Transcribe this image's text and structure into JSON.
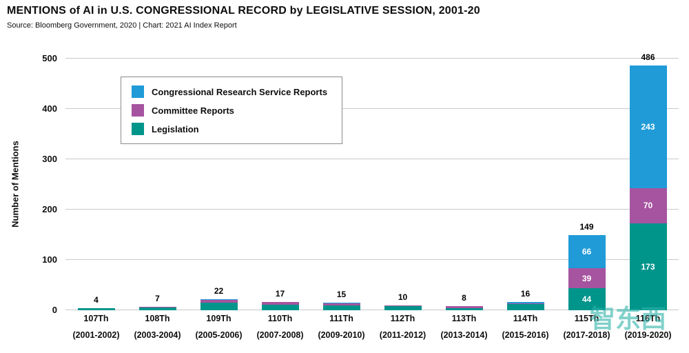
{
  "watermark": {
    "text": "智东西"
  },
  "chart_data": {
    "type": "bar",
    "stacked": true,
    "title": "MENTIONS of AI in U.S. CONGRESSIONAL RECORD by LEGISLATIVE SESSION, 2001-20",
    "source": "Source: Bloomberg Government, 2020 | Chart: 2021 AI Index Report",
    "ylabel": "Number of Mentions",
    "xlabel": "",
    "ylim": [
      0,
      500
    ],
    "yticks": [
      0,
      100,
      200,
      300,
      400,
      500
    ],
    "grid": true,
    "legend_position": "upper-left",
    "categories": [
      {
        "session": "107Th",
        "years": "(2001-2002)"
      },
      {
        "session": "108Th",
        "years": "(2003-2004)"
      },
      {
        "session": "109Th",
        "years": "(2005-2006)"
      },
      {
        "session": "110Th",
        "years": "(2007-2008)"
      },
      {
        "session": "111Th",
        "years": "(2009-2010)"
      },
      {
        "session": "112Th",
        "years": "(2011-2012)"
      },
      {
        "session": "113Th",
        "years": "(2013-2014)"
      },
      {
        "session": "114Th",
        "years": "(2015-2016)"
      },
      {
        "session": "115Th",
        "years": "(2017-2018)"
      },
      {
        "session": "116Th",
        "years": "(2019-2020)"
      }
    ],
    "series": [
      {
        "name": "Legislation",
        "color": "#00958b",
        "values": [
          4,
          6,
          15,
          11,
          9,
          8,
          4,
          12,
          44,
          173
        ]
      },
      {
        "name": "Committee Reports",
        "color": "#a6549f",
        "values": [
          0,
          1,
          6,
          5,
          5,
          2,
          4,
          2,
          39,
          70
        ]
      },
      {
        "name": "Congressional Research Service Reports",
        "color": "#209bd8",
        "values": [
          0,
          0,
          1,
          1,
          1,
          0,
          0,
          2,
          66,
          243
        ]
      }
    ],
    "totals": [
      4,
      7,
      22,
      17,
      15,
      10,
      8,
      16,
      149,
      486
    ],
    "labeled_segments": {
      "115Th": [
        44,
        39,
        66
      ],
      "116Th": [
        173,
        70,
        243
      ]
    },
    "segment_label_min": 39,
    "legend": [
      "Congressional Research Service Reports",
      "Committee Reports",
      "Legislation"
    ]
  }
}
